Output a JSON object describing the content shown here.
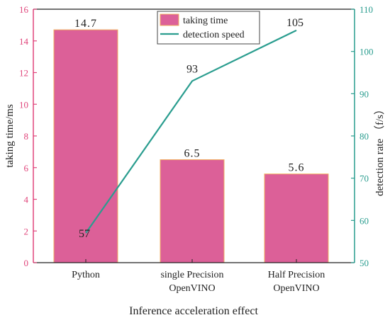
{
  "chart_data": {
    "type": "bar+line",
    "title": "",
    "xlabel": "Inference acceleration effect",
    "categories": [
      [
        "Python"
      ],
      [
        "single Precision",
        "OpenVINO"
      ],
      [
        "Half Precision",
        "OpenVINO"
      ]
    ],
    "left_axis": {
      "label": "taking time/ms",
      "ylim": [
        0,
        16
      ],
      "ticks": [
        "0",
        "2",
        "4",
        "6",
        "8",
        "10",
        "12",
        "14",
        "16"
      ],
      "color": "#e0457b"
    },
    "right_axis": {
      "label": "detection rate  （f/s）",
      "ylim": [
        50,
        110
      ],
      "ticks": [
        "50",
        "60",
        "70",
        "80",
        "90",
        "100",
        "110"
      ],
      "color": "#2a9d8f"
    },
    "series": [
      {
        "name": "taking time",
        "kind": "bar",
        "axis": "left",
        "values": [
          14.7,
          6.5,
          5.6
        ],
        "labels": [
          "14.7",
          "6.5",
          "5.6"
        ],
        "color": "#dc6098",
        "edge_color": "#f0b060"
      },
      {
        "name": "detection speed",
        "kind": "line",
        "axis": "right",
        "values": [
          57,
          93,
          105
        ],
        "labels": [
          "57",
          "93",
          "105"
        ],
        "color": "#2a9d8f"
      }
    ],
    "legend": {
      "position": "top-center"
    },
    "grid": false
  }
}
